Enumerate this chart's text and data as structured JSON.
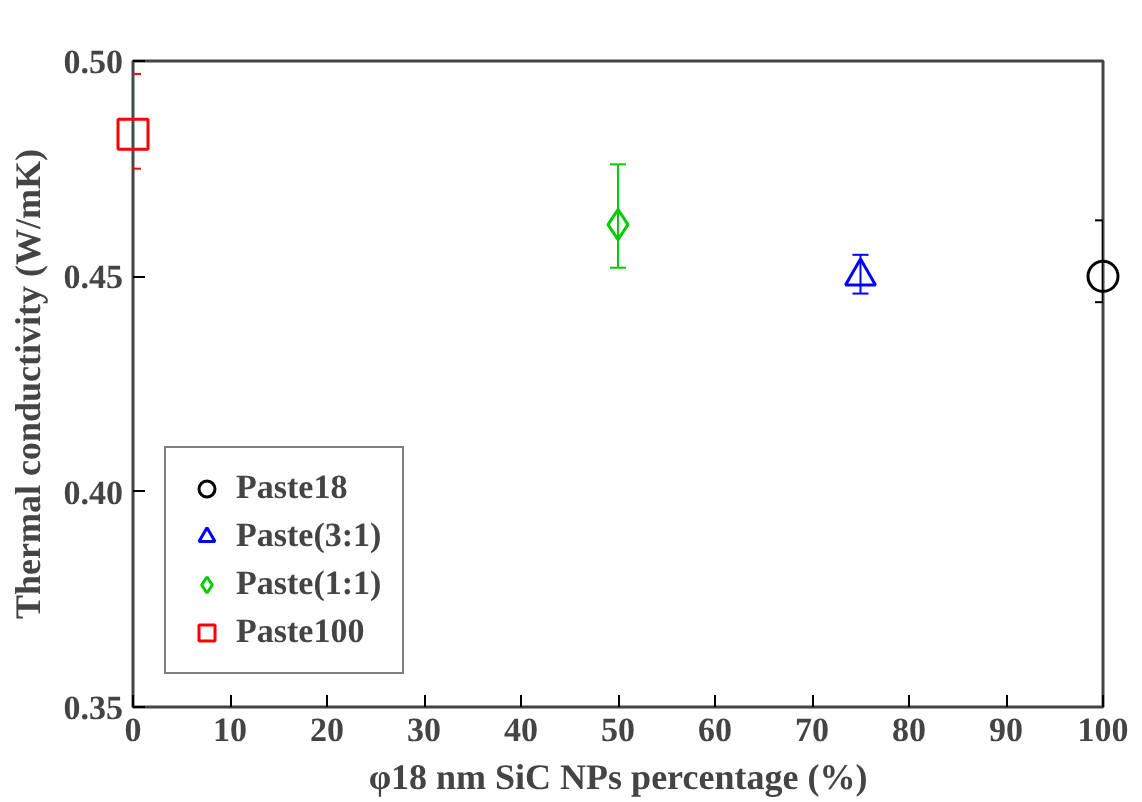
{
  "chart_data": {
    "type": "scatter",
    "xlabel": "φ18 nm SiC NPs percentage (%)",
    "ylabel": "Thermal conductivity (W/mK)",
    "xlim": [
      0,
      100
    ],
    "ylim": [
      0.35,
      0.5
    ],
    "xticks": [
      0,
      10,
      20,
      30,
      40,
      50,
      60,
      70,
      80,
      90,
      100
    ],
    "yticks": [
      {
        "value": 0.35,
        "label": "0.35"
      },
      {
        "value": 0.4,
        "label": "0.40"
      },
      {
        "value": 0.45,
        "label": "0.45"
      },
      {
        "value": 0.5,
        "label": "0.50"
      }
    ],
    "grid": false,
    "legend": "bottom left",
    "series": [
      {
        "name": "Paste18",
        "color": "#000000",
        "marker": "circle",
        "x": [
          100
        ],
        "values": [
          0.45
        ],
        "errors": [
          [
            0.444,
            0.463
          ]
        ]
      },
      {
        "name": "Paste(3:1)",
        "color": "#0000ff",
        "marker": "triangle",
        "x": [
          75
        ],
        "values": [
          0.45
        ],
        "errors": [
          [
            0.446,
            0.455
          ]
        ]
      },
      {
        "name": "Paste(1:1)",
        "color": "#00cc00",
        "marker": "diamond",
        "x": [
          50
        ],
        "values": [
          0.462
        ],
        "errors": [
          [
            0.452,
            0.476
          ]
        ]
      },
      {
        "name": "Paste100",
        "color": "#ff0000",
        "marker": "square",
        "x": [
          0
        ],
        "values": [
          0.483
        ],
        "errors": [
          [
            0.475,
            0.497
          ]
        ]
      }
    ]
  }
}
